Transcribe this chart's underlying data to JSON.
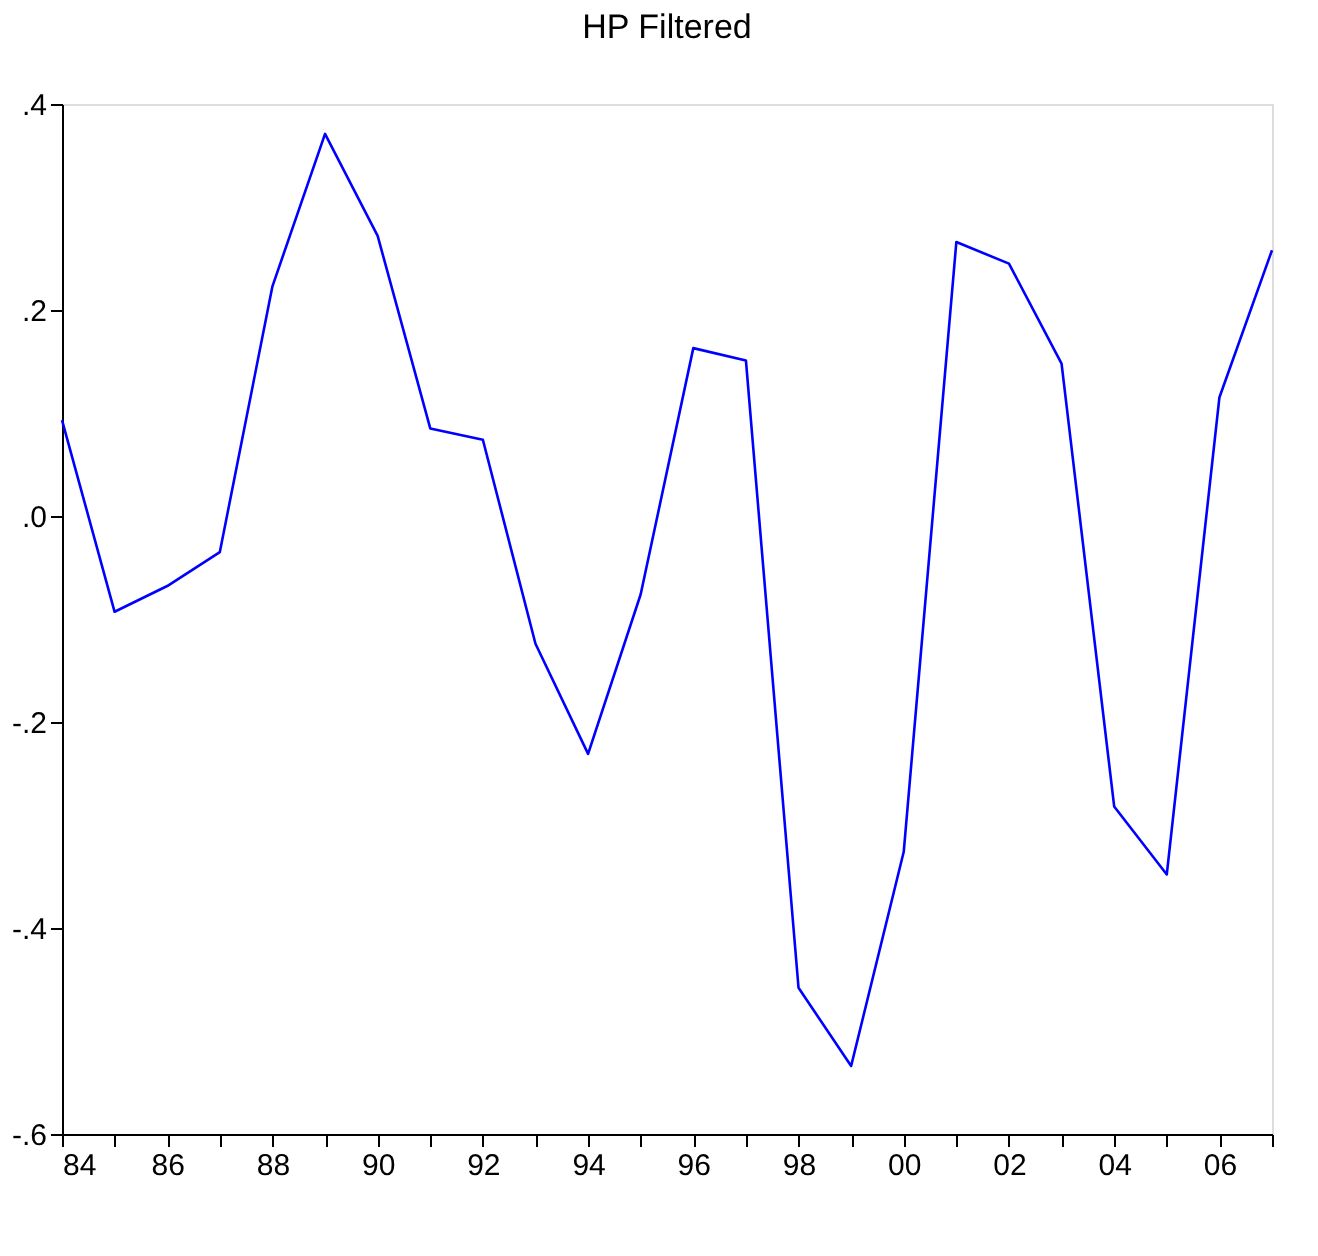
{
  "chart_data": {
    "type": "line",
    "title": "HP Filtered",
    "x": [
      1984,
      1985,
      1986,
      1987,
      1988,
      1989,
      1990,
      1991,
      1992,
      1993,
      1994,
      1995,
      1996,
      1997,
      1998,
      1999,
      2000,
      2001,
      2002,
      2003,
      2004,
      2005,
      2006,
      2007
    ],
    "series": [
      {
        "color": "#0000ff",
        "values": [
          0.093,
          -0.093,
          -0.068,
          -0.035,
          0.223,
          0.371,
          0.272,
          0.085,
          0.074,
          -0.124,
          -0.231,
          -0.076,
          0.163,
          0.151,
          -0.458,
          -0.534,
          -0.326,
          0.266,
          0.245,
          0.148,
          -0.282,
          -0.348,
          0.115,
          0.258
        ]
      }
    ],
    "xlim": [
      1984,
      2007
    ],
    "xticks": [
      {
        "value": 1984,
        "label": "84"
      },
      {
        "value": 1985,
        "label": null
      },
      {
        "value": 1986,
        "label": "86"
      },
      {
        "value": 1987,
        "label": null
      },
      {
        "value": 1988,
        "label": "88"
      },
      {
        "value": 1989,
        "label": null
      },
      {
        "value": 1990,
        "label": "90"
      },
      {
        "value": 1991,
        "label": null
      },
      {
        "value": 1992,
        "label": "92"
      },
      {
        "value": 1993,
        "label": null
      },
      {
        "value": 1994,
        "label": "94"
      },
      {
        "value": 1995,
        "label": null
      },
      {
        "value": 1996,
        "label": "96"
      },
      {
        "value": 1997,
        "label": null
      },
      {
        "value": 1998,
        "label": "98"
      },
      {
        "value": 1999,
        "label": null
      },
      {
        "value": 2000,
        "label": "00"
      },
      {
        "value": 2001,
        "label": null
      },
      {
        "value": 2002,
        "label": "02"
      },
      {
        "value": 2003,
        "label": null
      },
      {
        "value": 2004,
        "label": "04"
      },
      {
        "value": 2005,
        "label": null
      },
      {
        "value": 2006,
        "label": "06"
      },
      {
        "value": 2007,
        "label": null
      }
    ],
    "ylim": [
      -0.6,
      0.4
    ],
    "yticks": [
      {
        "value": -0.6,
        "label": "-.6"
      },
      {
        "value": -0.4,
        "label": "-.4"
      },
      {
        "value": -0.2,
        "label": "-.2"
      },
      {
        "value": 0.0,
        "label": ".0"
      },
      {
        "value": 0.2,
        "label": ".2"
      },
      {
        "value": 0.4,
        "label": ".4"
      }
    ],
    "grid": false,
    "legend": false,
    "marker": "none",
    "line_style": "solid"
  }
}
